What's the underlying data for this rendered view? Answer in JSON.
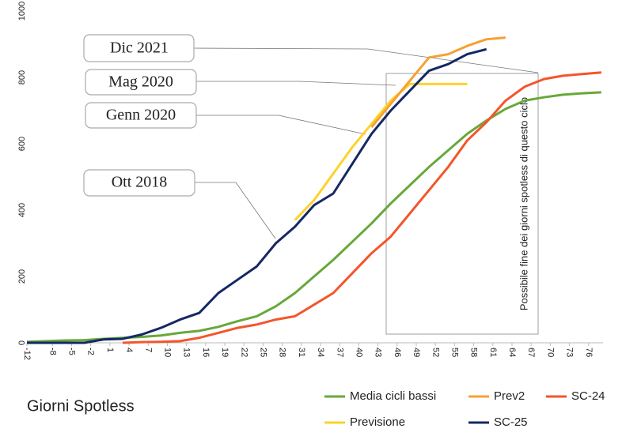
{
  "chart_data": {
    "type": "line",
    "title": "Giorni Spotless",
    "x": [
      -12,
      -9,
      -6,
      -3,
      0,
      3,
      6,
      9,
      12,
      15,
      18,
      21,
      24,
      27,
      30,
      33,
      36,
      39,
      42,
      45,
      48,
      51,
      54,
      57,
      60,
      63,
      66,
      69,
      72,
      75,
      78
    ],
    "series": [
      {
        "name": "Media cicli bassi",
        "color": "#67a83a",
        "values": [
          3,
          5,
          7,
          8,
          12,
          15,
          18,
          22,
          30,
          36,
          48,
          65,
          80,
          110,
          150,
          200,
          250,
          305,
          360,
          420,
          475,
          530,
          580,
          630,
          670,
          705,
          730,
          740,
          748,
          752,
          755
        ]
      },
      {
        "name": "Previsione",
        "color": "#fdd22b",
        "values": [
          null,
          null,
          null,
          null,
          null,
          null,
          null,
          null,
          null,
          null,
          null,
          null,
          null,
          null,
          370,
          430,
          510,
          590,
          660,
          730,
          780,
          780,
          780,
          780,
          null,
          null,
          null,
          null,
          null,
          null,
          null
        ]
      },
      {
        "name": "Prev2",
        "color": "#f7a033",
        "values": [
          null,
          null,
          null,
          null,
          null,
          null,
          null,
          null,
          null,
          null,
          null,
          null,
          null,
          null,
          null,
          null,
          null,
          null,
          650,
          720,
          790,
          860,
          870,
          895,
          915,
          920,
          null,
          null,
          null,
          null,
          null
        ]
      },
      {
        "name": "SC-25",
        "color": "#152865",
        "values": [
          0,
          0,
          0,
          0,
          10,
          12,
          25,
          45,
          70,
          90,
          150,
          190,
          230,
          300,
          350,
          415,
          450,
          540,
          630,
          700,
          760,
          820,
          840,
          870,
          885,
          null,
          null,
          null,
          null,
          null,
          null
        ]
      },
      {
        "name": "SC-24",
        "color": "#f4552b",
        "values": [
          null,
          null,
          null,
          null,
          null,
          0,
          2,
          3,
          5,
          15,
          30,
          45,
          55,
          70,
          80,
          115,
          150,
          210,
          270,
          320,
          390,
          460,
          530,
          610,
          665,
          730,
          772,
          795,
          805,
          810,
          815
        ]
      }
    ],
    "legend_order": [
      0,
      2,
      4,
      1,
      3
    ],
    "xlim": [
      -12,
      80
    ],
    "xticks": [
      -12,
      -8,
      -5,
      -2,
      1,
      4,
      7,
      10,
      13,
      16,
      19,
      22,
      25,
      28,
      31,
      34,
      37,
      40,
      43,
      46,
      49,
      52,
      55,
      58,
      61,
      64,
      67,
      70,
      73,
      76
    ],
    "ylim": [
      0,
      1000
    ],
    "yticks": [
      0,
      200,
      400,
      600,
      800,
      1000
    ],
    "grid": false,
    "annotations": [
      "Dic 2021",
      "Mag 2020",
      "Genn 2020",
      "Ott 2018"
    ],
    "region_note": "Possibile fine dei giorni spotless di questo ciclo"
  }
}
